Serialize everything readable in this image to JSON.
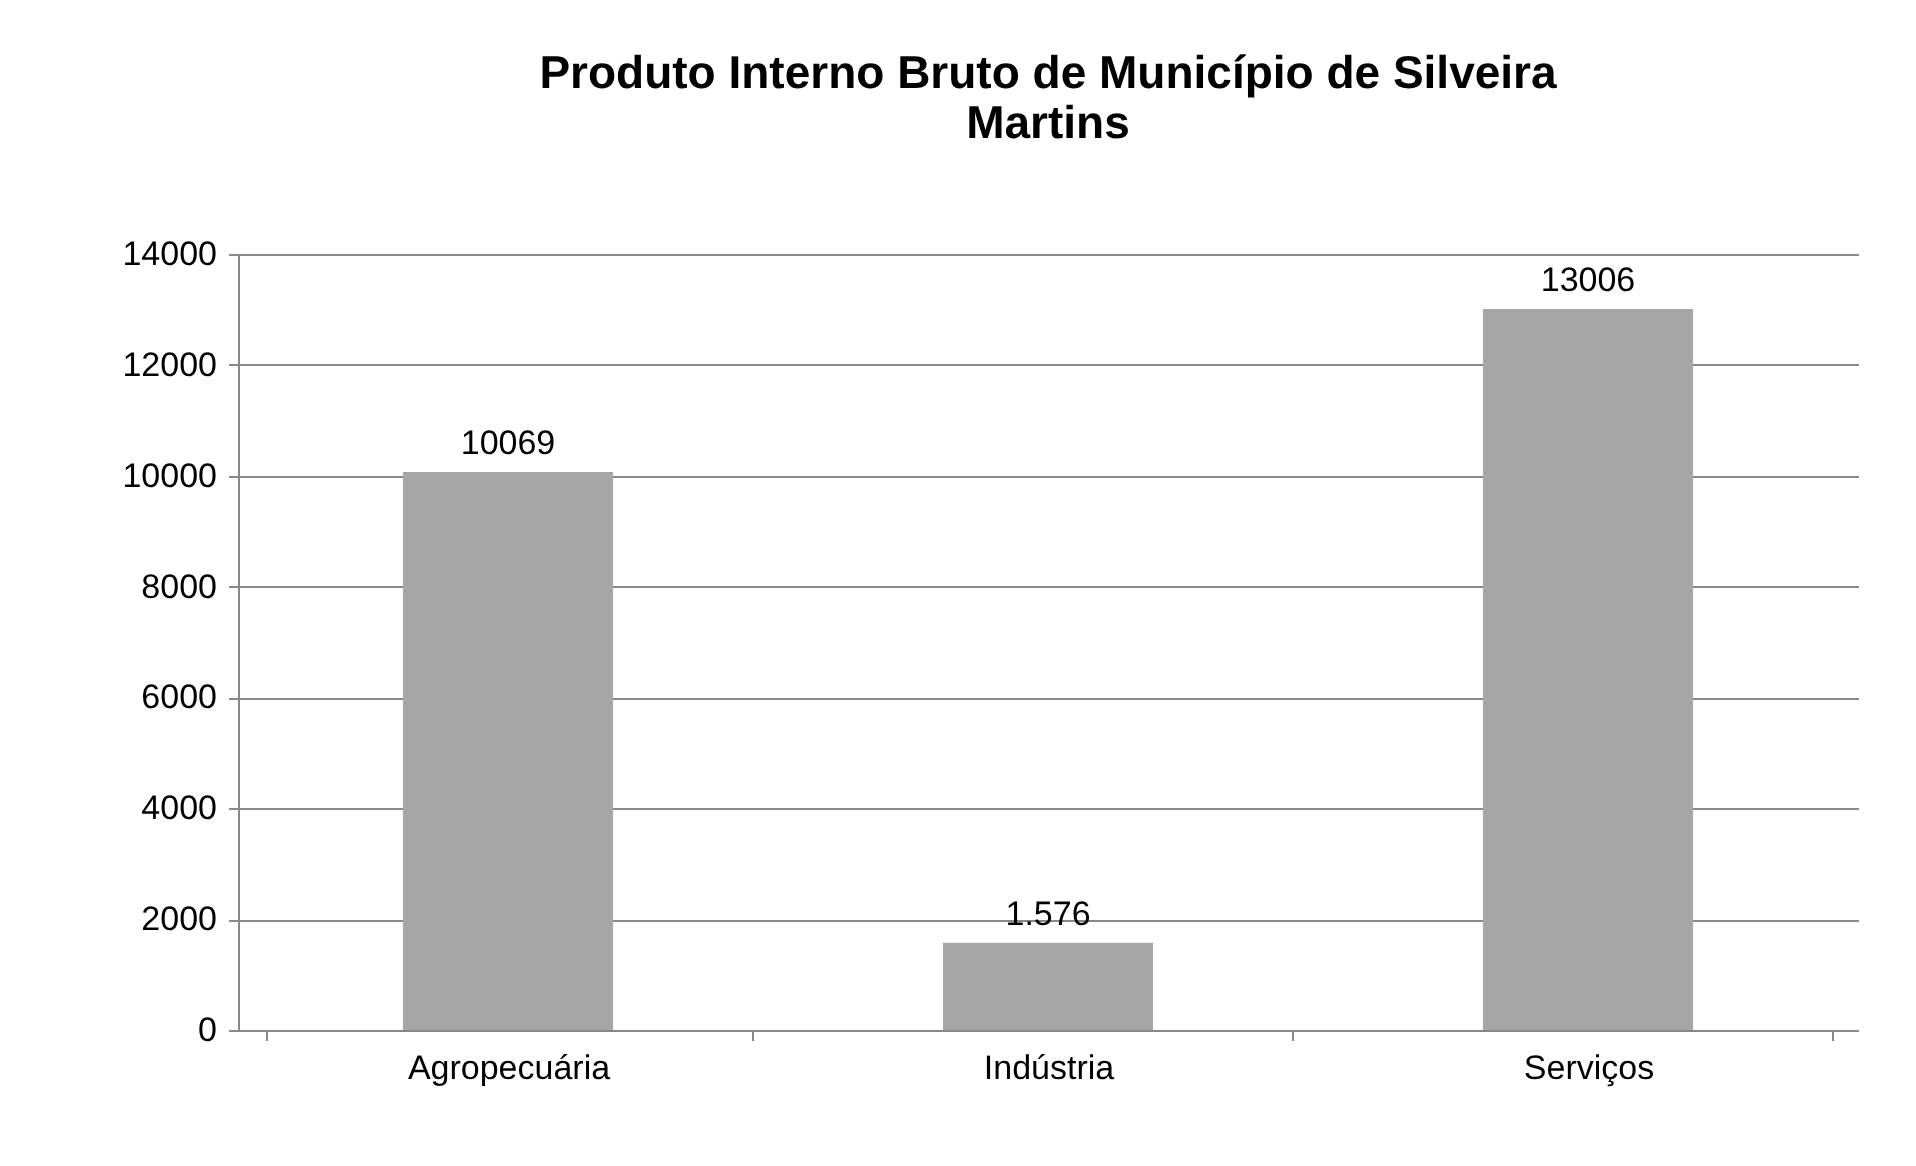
{
  "chart_data": {
    "type": "bar",
    "title": "Produto Interno Bruto de Município de Silveira Martins",
    "categories": [
      "Agropecuária",
      "Indústria",
      "Serviços"
    ],
    "values": [
      10069,
      1576,
      13006
    ],
    "value_labels": [
      "10069",
      "1.576",
      "13006"
    ],
    "color": "#a6a6a6",
    "ylim": [
      0,
      14000
    ],
    "yticks": [
      0,
      2000,
      4000,
      6000,
      8000,
      10000,
      12000,
      14000
    ],
    "grid": "y"
  }
}
